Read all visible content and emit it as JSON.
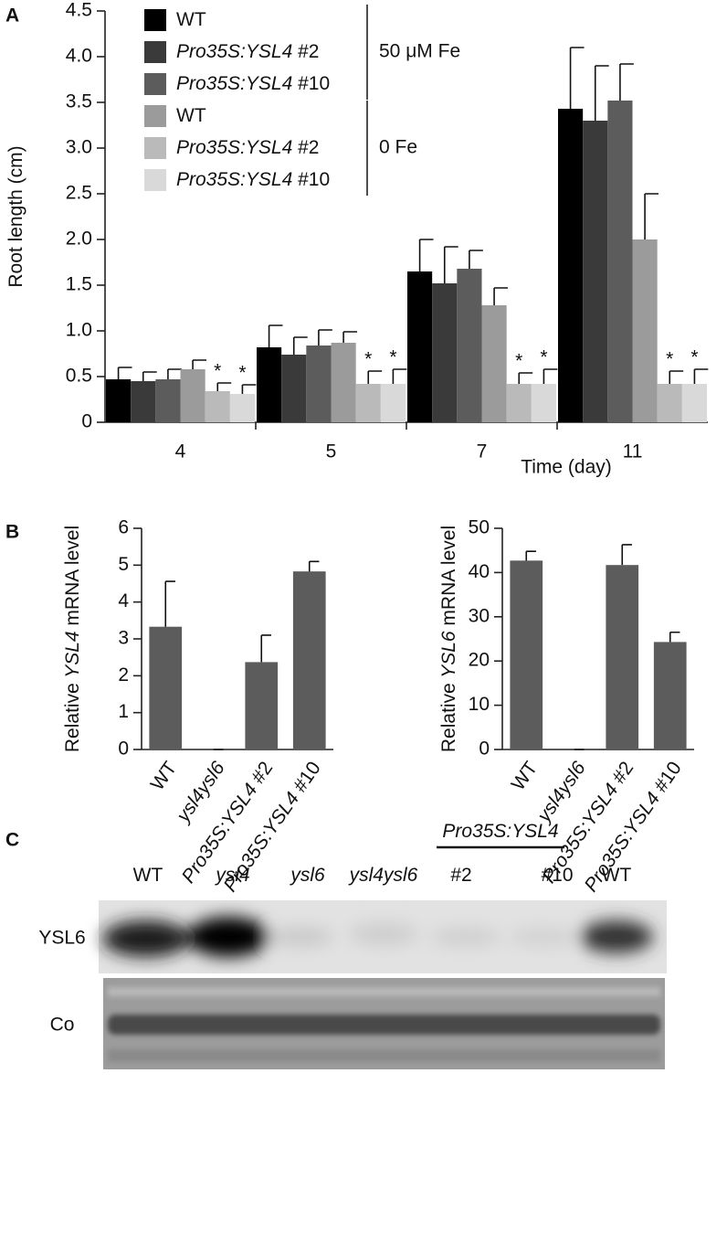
{
  "chart_data": [
    {
      "type": "bar",
      "panel": "A",
      "ylabel": "Root length (cm)",
      "xlabel": "Time (day)",
      "categories": [
        "4",
        "5",
        "7",
        "11"
      ],
      "ylim": [
        0,
        4.5
      ],
      "yticks": [
        0,
        0.5,
        {
          "value": 1,
          "label": "1.0"
        },
        1.5,
        {
          "value": 2,
          "label": "2.0"
        },
        2.5,
        {
          "value": 3,
          "label": "3.0"
        },
        3.5,
        {
          "value": 4,
          "label": "4.0"
        },
        4.5
      ],
      "series": [
        {
          "name": "WT",
          "group": "50 μM Fe",
          "color": "#000000",
          "values": [
            0.47,
            0.82,
            1.65,
            3.43
          ],
          "errors": [
            0.13,
            0.24,
            0.35,
            0.67
          ]
        },
        {
          "name": "Pro35S:YSL4 #2",
          "group": "50 μM Fe",
          "color": "#3a3a3a",
          "values": [
            0.45,
            0.74,
            1.52,
            3.3
          ],
          "errors": [
            0.1,
            0.19,
            0.4,
            0.6
          ]
        },
        {
          "name": "Pro35S:YSL4 #10",
          "group": "50 μM Fe",
          "color": "#5c5c5c",
          "values": [
            0.47,
            0.84,
            1.68,
            3.52
          ],
          "errors": [
            0.11,
            0.17,
            0.2,
            0.4
          ]
        },
        {
          "name": "WT",
          "group": "0 Fe",
          "color": "#9b9b9b",
          "values": [
            0.58,
            0.87,
            1.28,
            2.0
          ],
          "errors": [
            0.1,
            0.12,
            0.19,
            0.5
          ]
        },
        {
          "name": "Pro35S:YSL4 #2",
          "group": "0 Fe",
          "color": "#bababa",
          "values": [
            0.34,
            0.42,
            0.42,
            0.42
          ],
          "errors": [
            0.09,
            0.14,
            0.12,
            0.14
          ],
          "asterisk": "*"
        },
        {
          "name": "Pro35S:YSL4 #10",
          "group": "0 Fe",
          "color": "#d9d9d9",
          "values": [
            0.31,
            0.42,
            0.42,
            0.42
          ],
          "errors": [
            0.1,
            0.16,
            0.16,
            0.16
          ],
          "asterisk": "*"
        }
      ]
    },
    {
      "type": "bar",
      "panel": "B",
      "ylabel": "Relative YSL4 mRNA level",
      "categories": [
        "WT",
        "ysl4ysl6",
        "Pro35S:YSL4 #2",
        "Pro35S:YSL4 #10"
      ],
      "color": "#5c5c5c",
      "values": [
        3.33,
        0,
        2.37,
        4.83
      ],
      "errors": [
        1.23,
        0,
        0.73,
        0.27
      ],
      "ylim": [
        0,
        6
      ],
      "yticks": [
        0,
        1,
        2,
        3,
        4,
        5,
        6
      ]
    },
    {
      "type": "bar",
      "ylabel": "Relative YSL6 mRNA level",
      "categories": [
        "WT",
        "ysl4ysl6",
        "Pro35S:YSL4 #2",
        "Pro35S:YSL4 #10"
      ],
      "color": "#5c5c5c",
      "values": [
        42.7,
        0,
        41.7,
        24.3
      ],
      "errors": [
        2.1,
        0,
        4.6,
        2.2
      ],
      "ylim": [
        0,
        50
      ],
      "yticks": [
        0,
        10,
        20,
        30,
        40,
        50
      ]
    }
  ],
  "blot": {
    "panel": "C",
    "group_label": "Pro35S:YSL4",
    "lanes": [
      "WT",
      "ysl4",
      "ysl6",
      "ysl4ysl6",
      "#2",
      "#10",
      "WT"
    ],
    "rows": [
      "YSL6",
      "Co"
    ]
  }
}
